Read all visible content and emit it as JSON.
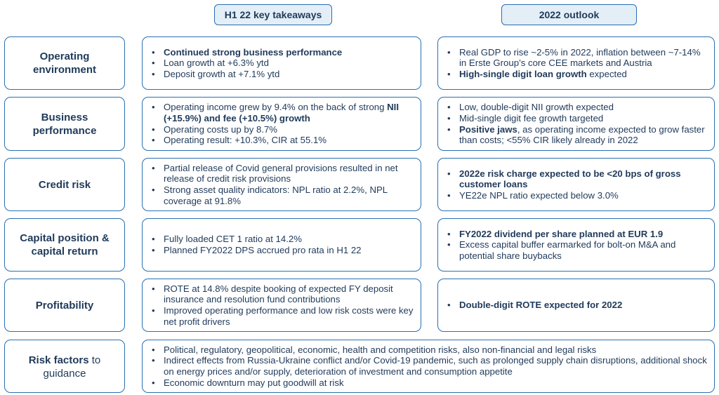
{
  "headers": {
    "left": "H1 22 key takeaways",
    "right": "2022 outlook"
  },
  "rows": [
    {
      "label": "Operating environment",
      "takeaways": [
        [
          {
            "t": "Continued strong business performance",
            "b": true
          }
        ],
        [
          {
            "t": "Loan growth at +6.3% ytd",
            "b": false
          }
        ],
        [
          {
            "t": "Deposit growth at +7.1% ytd",
            "b": false
          }
        ]
      ],
      "outlook": [
        [
          {
            "t": "Real GDP to rise ~2-5% in 2022, inflation between ~7-14% in Erste Group’s core CEE markets and Austria",
            "b": false
          }
        ],
        [
          {
            "t": "High-single digit loan growth",
            "b": true
          },
          {
            "t": " expected",
            "b": false
          }
        ]
      ]
    },
    {
      "label": "Business performance",
      "takeaways": [
        [
          {
            "t": "Operating income grew by 9.4% on the back of strong ",
            "b": false
          },
          {
            "t": "NII (+15.9%) and fee (+10.5%) growth",
            "b": true
          }
        ],
        [
          {
            "t": "Operating costs up by 8.7%",
            "b": false
          }
        ],
        [
          {
            "t": "Operating result: +10.3%, CIR at 55.1%",
            "b": false
          }
        ]
      ],
      "outlook": [
        [
          {
            "t": "Low, double-digit NII growth expected",
            "b": false
          }
        ],
        [
          {
            "t": "Mid-single digit fee growth targeted",
            "b": false
          }
        ],
        [
          {
            "t": "Positive jaws",
            "b": true
          },
          {
            "t": ", as operating income expected to grow faster than costs; <55% CIR likely already in 2022",
            "b": false
          }
        ]
      ]
    },
    {
      "label": "Credit risk",
      "takeaways": [
        [
          {
            "t": "Partial release of Covid general provisions resulted in net release of credit risk provisions",
            "b": false
          }
        ],
        [
          {
            "t": "Strong asset quality indicators: NPL ratio at 2.2%, NPL coverage at 91.8%",
            "b": false
          }
        ]
      ],
      "outlook": [
        [
          {
            "t": "2022e risk charge expected to be <20 bps of gross customer loans",
            "b": true
          }
        ],
        [
          {
            "t": "YE22e NPL ratio expected below 3.0%",
            "b": false
          }
        ]
      ]
    },
    {
      "label": "Capital position & capital return",
      "takeaways": [
        [
          {
            "t": "Fully loaded CET 1 ratio at 14.2%",
            "b": false
          }
        ],
        [
          {
            "t": "Planned FY2022 DPS accrued pro rata in H1 22",
            "b": false
          }
        ]
      ],
      "outlook": [
        [
          {
            "t": "FY2022 dividend per share planned at EUR 1.9",
            "b": true
          }
        ],
        [
          {
            "t": "Excess capital buffer earmarked for bolt-on M&A and potential share buybacks",
            "b": false
          }
        ]
      ]
    },
    {
      "label": "Profitability",
      "takeaways": [
        [
          {
            "t": "ROTE at 14.8% despite booking of expected FY deposit insurance and resolution fund contributions",
            "b": false
          }
        ],
        [
          {
            "t": "Improved operating performance and low risk costs were key net profit drivers",
            "b": false
          }
        ]
      ],
      "outlook": [
        [
          {
            "t": "Double-digit ROTE expected for 2022",
            "b": true
          }
        ]
      ]
    }
  ],
  "risk": {
    "label_bold": "Risk factors",
    "label_rest": " to guidance",
    "items": [
      "Political, regulatory, geopolitical, economic, health  and competition risks, also non-financial and legal risks",
      "Indirect effects from Russia-Ukraine conflict and/or Covid-19 pandemic, such as prolonged supply chain disruptions, additional shock on energy prices and/or supply, deterioration of investment and consumption appetite",
      "Economic downturn may put goodwill at risk"
    ]
  }
}
